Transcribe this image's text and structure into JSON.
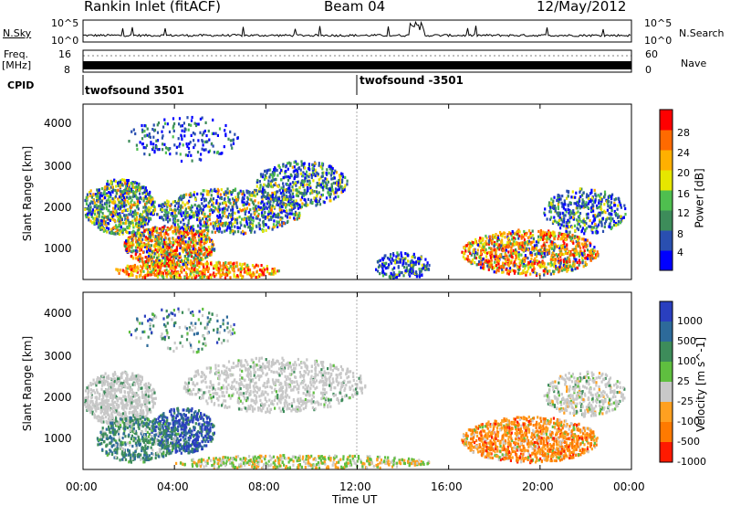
{
  "header": {
    "station": "Rankin Inlet (fitACF)",
    "beam": "Beam 04",
    "date": "12/May/2012"
  },
  "noise_panel": {
    "left_label": "N.Sky",
    "right_label": "N.Search",
    "tick_top": "10^5",
    "tick_bottom": "10^0",
    "tick_top_right": "10^5",
    "tick_bottom_right": "10^0"
  },
  "freq_panel": {
    "left_label_top": "Freq.",
    "left_label_unit": "[MHz]",
    "right_label": "Nave",
    "tick_16": "16",
    "tick_8": "8",
    "tick_60": "60",
    "tick_0": "0"
  },
  "cpid": {
    "label": "CPID",
    "programs": [
      {
        "name": "twofsound 3501",
        "start_hour": 0
      },
      {
        "name": "twofsound -3501",
        "start_hour": 12
      }
    ]
  },
  "time_axis": {
    "label": "Time UT",
    "ticks": [
      "00:00",
      "04:00",
      "08:00",
      "12:00",
      "16:00",
      "20:00",
      "00:00"
    ],
    "range_hours": [
      0,
      24
    ]
  },
  "range_axis": {
    "label": "Slant Range [km]",
    "ticks": [
      "1000",
      "2000",
      "3000",
      "4000"
    ],
    "range_km": [
      200,
      4500
    ]
  },
  "colors": {
    "power_scale": [
      "#0000ff",
      "#2a4fb0",
      "#3d8c5a",
      "#4fbf4f",
      "#e6e600",
      "#ffb000",
      "#ff6a00",
      "#ff0000"
    ],
    "velocity_scale": [
      "#2a3fbf",
      "#2d6a9a",
      "#3d8c5a",
      "#5fbf3f",
      "#c8c8c8",
      "#ffa020",
      "#ff7a00",
      "#ff1a00"
    ]
  },
  "chart_data": [
    {
      "type": "heatmap",
      "name": "power",
      "colorbar_label": "Power [dB]",
      "colorbar_ticks": [
        "4",
        "8",
        "12",
        "16",
        "20",
        "24",
        "28"
      ],
      "colorbar_range": [
        0,
        32
      ]
    },
    {
      "type": "heatmap",
      "name": "velocity",
      "colorbar_label": "Velocity [m s^-1]",
      "colorbar_ticks": [
        "1000",
        "500",
        "100",
        "25",
        "-25",
        "-100",
        "-500",
        "-1000"
      ]
    }
  ]
}
